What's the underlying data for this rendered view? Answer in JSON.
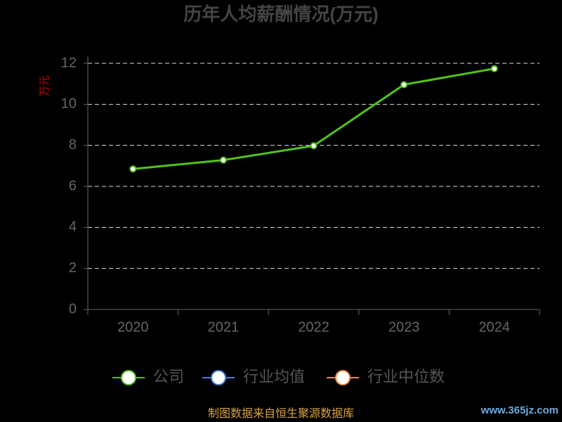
{
  "chart_data": {
    "type": "line",
    "title": "历年人均薪酬情况(万元)",
    "y_label": "万元",
    "categories": [
      "2020",
      "2021",
      "2022",
      "2023",
      "2024"
    ],
    "series": [
      {
        "name": "公司",
        "color": "#52c41a",
        "values": [
          6.85,
          7.28,
          7.98,
          10.96,
          11.74
        ]
      },
      {
        "name": "行业均值",
        "color": "#4a7bd8",
        "values": [
          null,
          null,
          null,
          null,
          null
        ]
      },
      {
        "name": "行业中位数",
        "color": "#f08a4b",
        "values": [
          null,
          null,
          null,
          null,
          null
        ]
      }
    ],
    "ylim": [
      0,
      12
    ],
    "yticks": [
      0,
      2,
      4,
      6,
      8,
      10,
      12
    ],
    "grid": true,
    "source": "制图数据来自恒生聚源数据库",
    "watermark": "www.365jz.com"
  }
}
